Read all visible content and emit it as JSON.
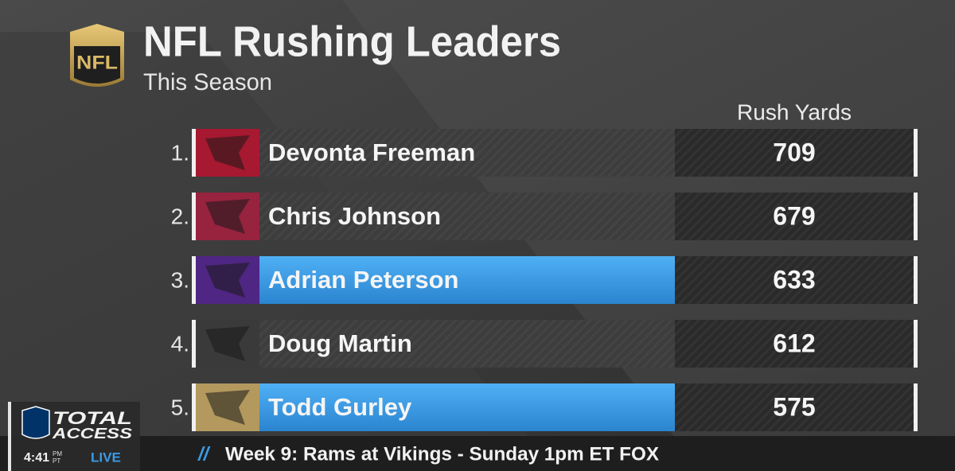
{
  "header": {
    "logo": "NFL",
    "title": "NFL Rushing Leaders",
    "subtitle": "This Season"
  },
  "table": {
    "column_header": "Rush Yards",
    "highlight_color": "#3a9be6",
    "rows": [
      {
        "rank": "1.",
        "name": "Devonta Freeman",
        "yards": 709,
        "highlighted": false,
        "logo_color": "#a71930"
      },
      {
        "rank": "2.",
        "name": "Chris Johnson",
        "yards": 679,
        "highlighted": false,
        "logo_color": "#97233f"
      },
      {
        "rank": "3.",
        "name": "Adrian Peterson",
        "yards": 633,
        "highlighted": true,
        "logo_color": "#4f2683"
      },
      {
        "rank": "4.",
        "name": "Doug Martin",
        "yards": 612,
        "highlighted": false,
        "logo_color": "#3a3a3a"
      },
      {
        "rank": "5.",
        "name": "Todd Gurley",
        "yards": 575,
        "highlighted": true,
        "logo_color": "#b3995d"
      }
    ]
  },
  "bug": {
    "show": "TOTAL",
    "show_line2": "ACCESS",
    "time": "4:41",
    "meridiem": "PM",
    "zone": "PT",
    "status": "LIVE"
  },
  "ticker": {
    "separator": "//",
    "text": "Week 9:  Rams at Vikings - Sunday 1pm ET FOX"
  }
}
